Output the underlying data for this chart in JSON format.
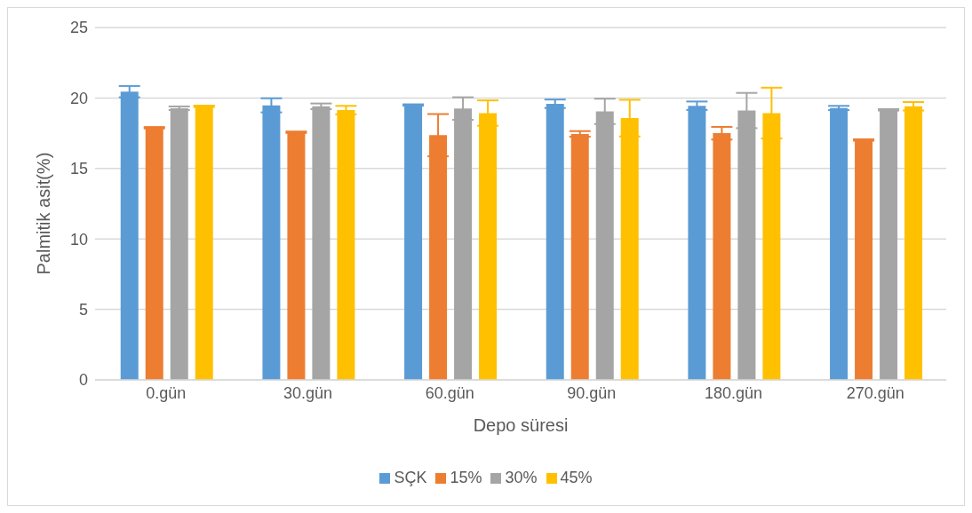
{
  "chart_data": {
    "type": "bar",
    "xlabel": "Depo süresi",
    "ylabel": "Palmitik asit(%)",
    "categories": [
      "0.gün",
      "30.gün",
      "60.gün",
      "90.gün",
      "180.gün",
      "270.gün"
    ],
    "series": [
      {
        "name": "SÇK",
        "color": "#5b9bd5",
        "values": [
          20.45,
          19.48,
          19.5,
          19.59,
          19.45,
          19.29
        ],
        "errors": [
          0.4,
          0.5,
          0.05,
          0.3,
          0.3,
          0.15
        ]
      },
      {
        "name": "15%",
        "color": "#ed7d31",
        "values": [
          17.89,
          17.57,
          17.36,
          17.45,
          17.5,
          17.02
        ],
        "errors": [
          0.05,
          0.05,
          1.5,
          0.2,
          0.45,
          0.05
        ]
      },
      {
        "name": "30%",
        "color": "#a5a5a5",
        "values": [
          19.27,
          19.41,
          19.25,
          19.05,
          19.11,
          19.16
        ],
        "errors": [
          0.13,
          0.2,
          0.8,
          0.9,
          1.25,
          0.05
        ]
      },
      {
        "name": "45%",
        "color": "#ffc000",
        "values": [
          19.41,
          19.14,
          18.93,
          18.57,
          18.93,
          19.41
        ],
        "errors": [
          0.05,
          0.3,
          0.9,
          1.3,
          1.8,
          0.3
        ]
      }
    ],
    "ylim": [
      0,
      25
    ],
    "yticks": [
      0,
      5,
      10,
      15,
      20,
      25
    ],
    "grid": "y",
    "legend": "bottom"
  }
}
